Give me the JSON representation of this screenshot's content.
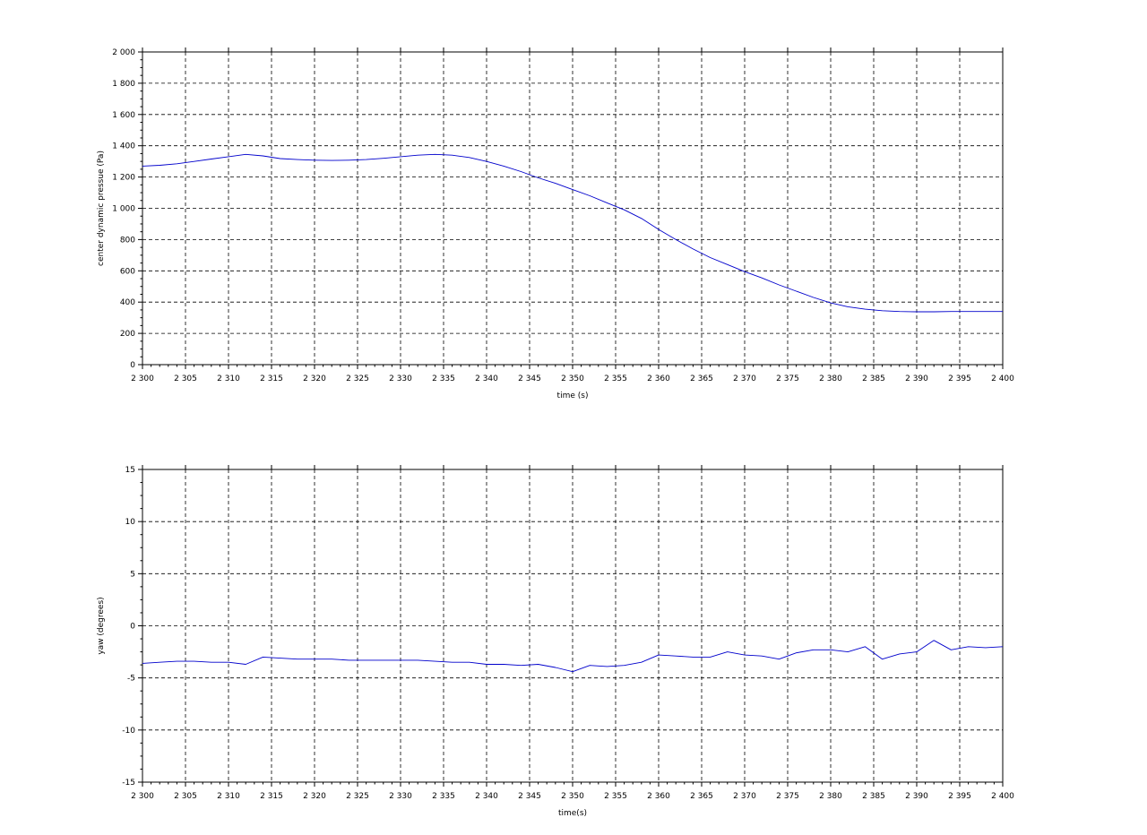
{
  "chart_data": [
    {
      "type": "line",
      "xlabel": "time (s)",
      "ylabel": "center dynamic pressue (Pa)",
      "xlim": [
        2300,
        2400
      ],
      "ylim": [
        0,
        2000
      ],
      "grid": true,
      "line_color": "#0000cc",
      "xticks": [
        "2 300",
        "2 305",
        "2 310",
        "2 315",
        "2 320",
        "2 325",
        "2 330",
        "2 335",
        "2 340",
        "2 345",
        "2 350",
        "2 355",
        "2 360",
        "2 365",
        "2 370",
        "2 375",
        "2 380",
        "2 385",
        "2 390",
        "2 395",
        "2 400"
      ],
      "yticks": [
        "0",
        "200",
        "400",
        "600",
        "800",
        "1 000",
        "1 200",
        "1 400",
        "1 600",
        "1 800",
        "2 000"
      ],
      "series": [
        {
          "x": [
            2300,
            2302,
            2304,
            2306,
            2308,
            2310,
            2312,
            2314,
            2316,
            2318,
            2320,
            2322,
            2324,
            2326,
            2328,
            2330,
            2332,
            2334,
            2336,
            2338,
            2340,
            2342,
            2344,
            2346,
            2348,
            2350,
            2352,
            2354,
            2356,
            2358,
            2360,
            2362,
            2364,
            2366,
            2368,
            2370,
            2372,
            2374,
            2376,
            2378,
            2380,
            2382,
            2384,
            2386,
            2388,
            2390,
            2392,
            2394,
            2396,
            2398,
            2400
          ],
          "y": [
            1270,
            1275,
            1285,
            1300,
            1315,
            1330,
            1345,
            1335,
            1318,
            1312,
            1308,
            1306,
            1308,
            1312,
            1320,
            1330,
            1340,
            1345,
            1340,
            1325,
            1300,
            1270,
            1235,
            1195,
            1160,
            1120,
            1080,
            1035,
            990,
            935,
            865,
            800,
            740,
            685,
            640,
            595,
            555,
            510,
            470,
            430,
            395,
            370,
            355,
            345,
            340,
            338,
            338,
            340,
            340,
            340,
            340
          ]
        }
      ]
    },
    {
      "type": "line",
      "xlabel": "time(s)",
      "ylabel": "yaw (degrees)",
      "xlim": [
        2300,
        2400
      ],
      "ylim": [
        -15,
        15
      ],
      "grid": true,
      "line_color": "#0000cc",
      "xticks": [
        "2 300",
        "2 305",
        "2 310",
        "2 315",
        "2 320",
        "2 325",
        "2 330",
        "2 335",
        "2 340",
        "2 345",
        "2 350",
        "2 355",
        "2 360",
        "2 365",
        "2 370",
        "2 375",
        "2 380",
        "2 385",
        "2 390",
        "2 395",
        "2 400"
      ],
      "yticks": [
        "-15",
        "-10",
        "-5",
        "0",
        "5",
        "10",
        "15"
      ],
      "series": [
        {
          "x": [
            2300,
            2302,
            2304,
            2306,
            2308,
            2310,
            2312,
            2314,
            2316,
            2318,
            2320,
            2322,
            2324,
            2326,
            2328,
            2330,
            2332,
            2334,
            2336,
            2338,
            2340,
            2342,
            2344,
            2346,
            2348,
            2350,
            2352,
            2354,
            2356,
            2358,
            2360,
            2362,
            2364,
            2366,
            2368,
            2370,
            2372,
            2374,
            2376,
            2378,
            2380,
            2382,
            2384,
            2386,
            2388,
            2390,
            2392,
            2394,
            2396,
            2398,
            2400
          ],
          "y": [
            -3.6,
            -3.5,
            -3.4,
            -3.4,
            -3.5,
            -3.5,
            -3.7,
            -3.0,
            -3.1,
            -3.2,
            -3.2,
            -3.2,
            -3.3,
            -3.3,
            -3.3,
            -3.3,
            -3.3,
            -3.4,
            -3.5,
            -3.5,
            -3.7,
            -3.7,
            -3.8,
            -3.7,
            -4.0,
            -4.4,
            -3.8,
            -3.9,
            -3.8,
            -3.5,
            -2.8,
            -2.9,
            -3.0,
            -3.0,
            -2.5,
            -2.8,
            -2.9,
            -3.2,
            -2.6,
            -2.3,
            -2.3,
            -2.5,
            -2.0,
            -3.2,
            -2.7,
            -2.5,
            -1.4,
            -2.3,
            -2.0,
            -2.1,
            -2.0
          ]
        }
      ]
    }
  ]
}
